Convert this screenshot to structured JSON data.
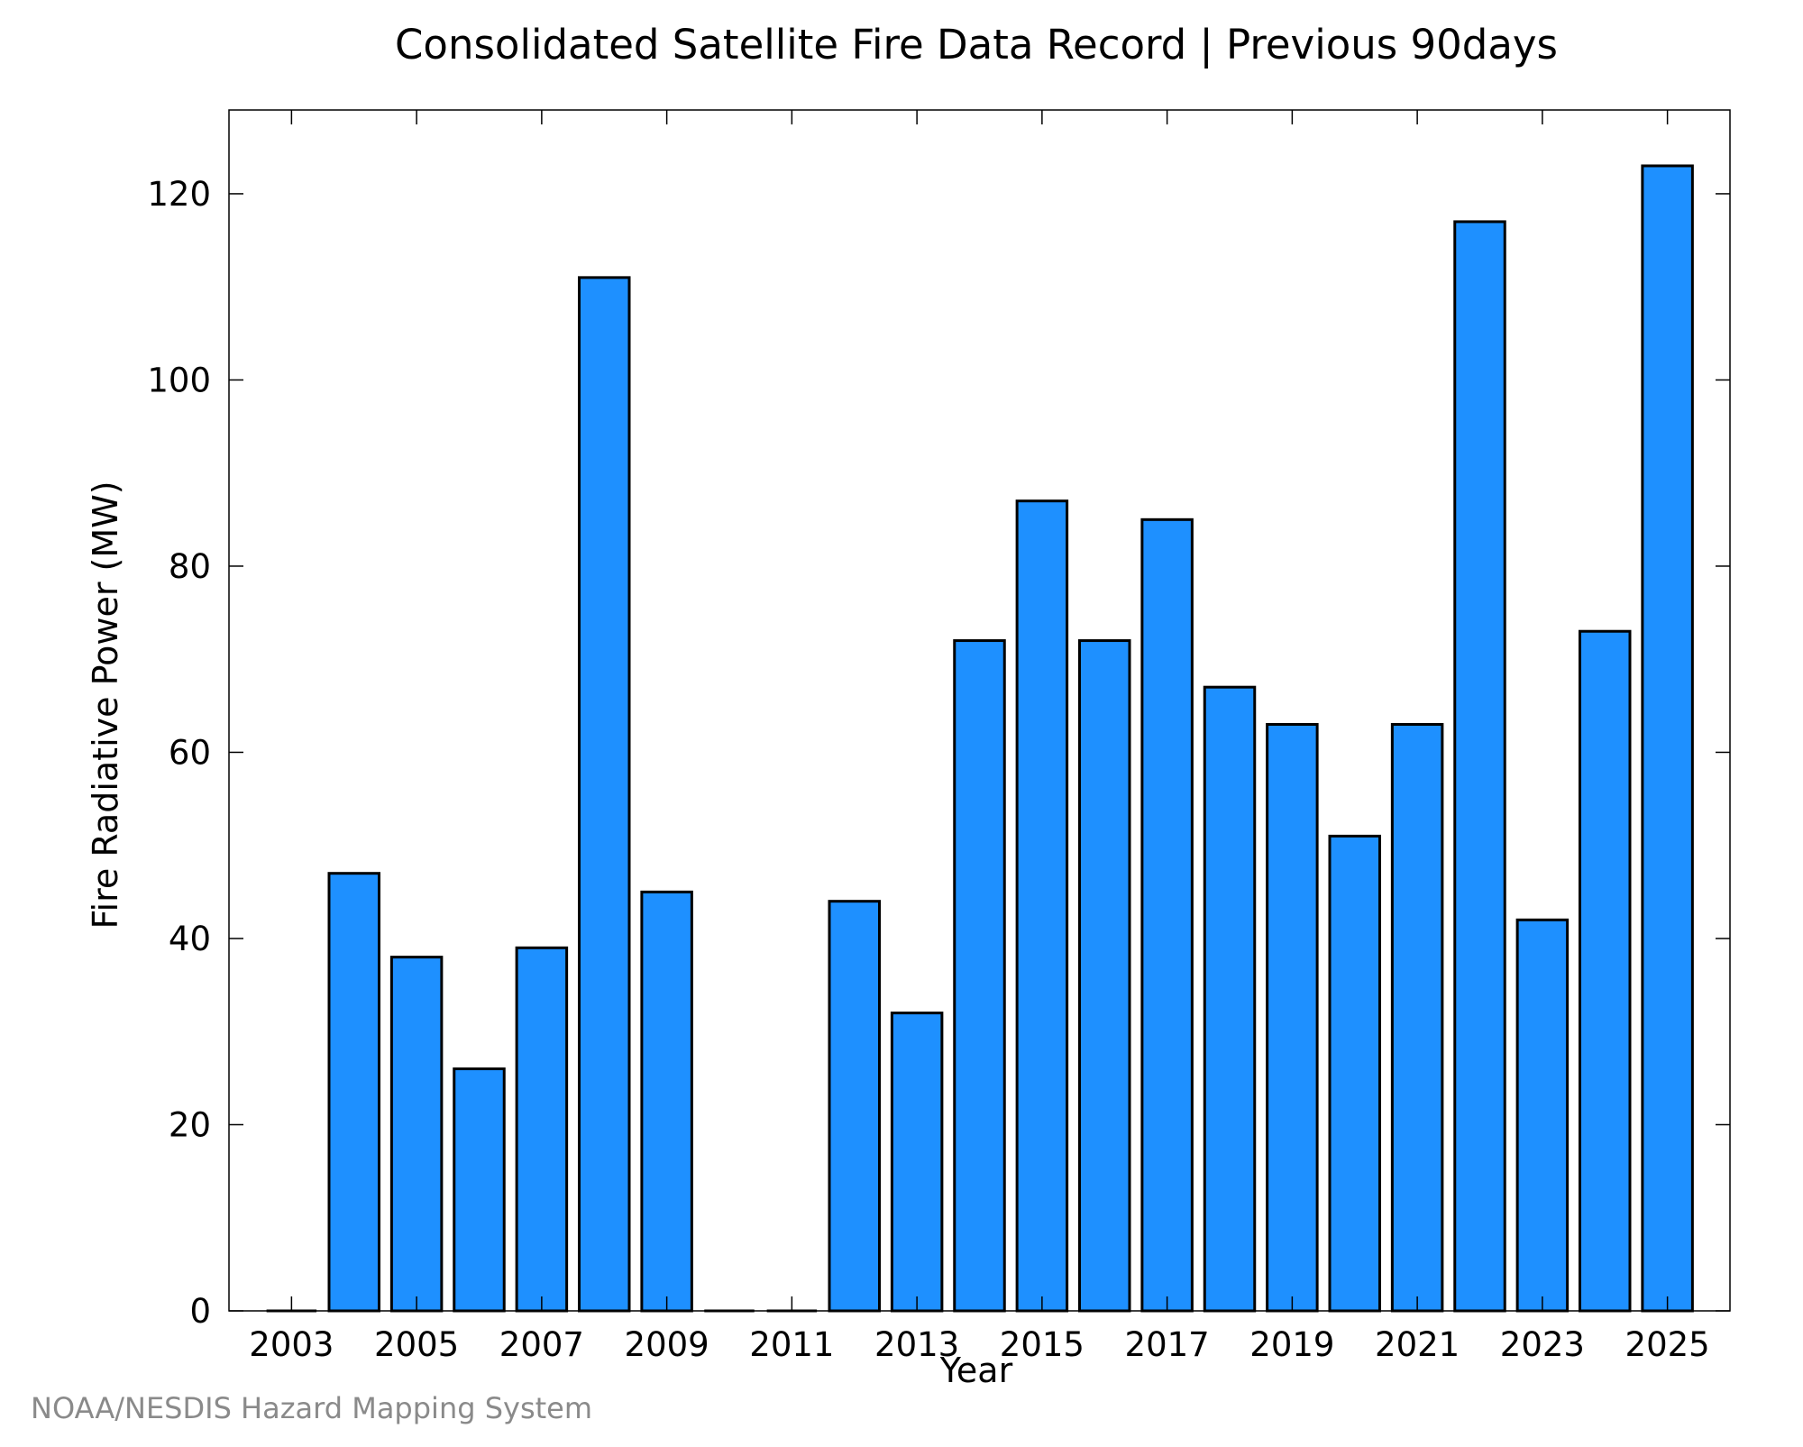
{
  "credit": "NOAA/NESDIS Hazard Mapping System",
  "chart_data": {
    "type": "bar",
    "title": "Consolidated Satellite Fire Data Record | Previous 90days",
    "xlabel": "Year",
    "ylabel": "Fire Radiative Power (MW)",
    "categories": [
      2003,
      2004,
      2005,
      2006,
      2007,
      2008,
      2009,
      2010,
      2011,
      2012,
      2013,
      2014,
      2015,
      2016,
      2017,
      2018,
      2019,
      2020,
      2021,
      2022,
      2023,
      2024,
      2025
    ],
    "values": [
      0,
      47,
      38,
      26,
      39,
      111,
      45,
      0,
      0,
      44,
      32,
      72,
      87,
      72,
      85,
      67,
      63,
      51,
      63,
      117,
      42,
      73,
      123
    ],
    "xticks": [
      2003,
      2005,
      2007,
      2009,
      2011,
      2013,
      2015,
      2017,
      2019,
      2021,
      2023,
      2025
    ],
    "xtick_labels": [
      "2003",
      "2005",
      "2007",
      "2009",
      "2011",
      "2013",
      "2015",
      "2017",
      "2019",
      "2021",
      "2023",
      "2025"
    ],
    "yticks": [
      0,
      20,
      40,
      60,
      80,
      100,
      120
    ],
    "ytick_labels": [
      "0",
      "20",
      "40",
      "60",
      "80",
      "100",
      "120"
    ],
    "xlim": [
      2002,
      2026
    ],
    "ylim": [
      0,
      129
    ],
    "bar_color": "#1e90ff",
    "bar_edge_color": "#000000",
    "grid": false,
    "legend": "none"
  }
}
